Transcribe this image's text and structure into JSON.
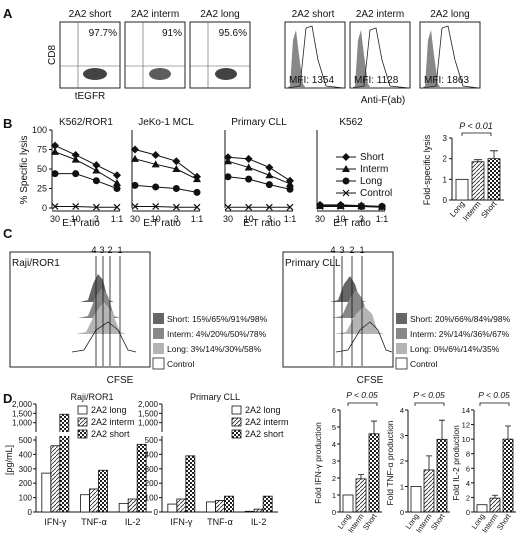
{
  "panels": {
    "A": "A",
    "B": "B",
    "C": "C",
    "D": "D"
  },
  "panelA": {
    "titles": [
      "2A2 short",
      "2A2 interm",
      "2A2 long",
      "2A2 short",
      "2A2 interm",
      "2A2 long"
    ],
    "percents": [
      "97.7%",
      "91%",
      "95.6%"
    ],
    "mfi": [
      "MFI: 1354",
      "MFI: 1128",
      "MFI: 1863"
    ],
    "ylabel": "CD8",
    "xlabel_scatter": "tEGFR",
    "xlabel_hist": "Anti-F(ab)"
  },
  "panelB": {
    "titles": [
      "K562/ROR1",
      "JeKo-1 MCL",
      "Primary CLL",
      "K562"
    ],
    "ylabel": "% Specific lysis",
    "xlabel": "E:T ratio",
    "xticks": [
      "30",
      "10",
      "3",
      "1:1"
    ],
    "yticks": [
      "0",
      "25",
      "50",
      "75",
      "100"
    ],
    "legend": [
      "Short",
      "Interm",
      "Long",
      "Control"
    ],
    "bar_ylabel": "Fold-specific lysis",
    "bar_pvalue": "P < 0.01",
    "bar_cats": [
      "Long",
      "Interm",
      "Short"
    ],
    "bar_yticks": [
      "0",
      "1",
      "2",
      "3"
    ]
  },
  "panelC": {
    "peaks": [
      "4",
      "3",
      "2",
      "1"
    ],
    "raji": {
      "title": "Raji/ROR1",
      "legend": [
        "Short: 15%/65%/91%/98%",
        "Interm: 4%/20%/50%/78%",
        "Long: 3%/14%/30%/58%",
        "Control"
      ]
    },
    "cll": {
      "title": "Primary CLL",
      "legend": [
        "Short: 20%/66%/84%/98%",
        "Interm: 2%/14%/36%/67%",
        "Long: 0%/6%/14%/35%",
        "Control"
      ]
    },
    "xlabel": "CFSE"
  },
  "panelD": {
    "ylabel": "[pg/mL]",
    "yticks": [
      "0",
      "100",
      "200",
      "300",
      "400",
      "500",
      "1,000",
      "1,500",
      "2,000"
    ],
    "raji_title": "Raji/ROR1",
    "cll_title": "Primary CLL",
    "legend": [
      "2A2 long",
      "2A2 interm",
      "2A2 short"
    ],
    "cats": [
      "IFN-γ",
      "TNF-α",
      "IL-2"
    ],
    "fold_ylabels": [
      "Fold IFN-γ production",
      "Fold TNF-α production",
      "Fold IL-2 production"
    ],
    "fold_cats": [
      "Long",
      "Interm",
      "Short"
    ],
    "pvalue": "P < 0.05",
    "fold_yticks_a": [
      "0",
      "1",
      "2",
      "3",
      "4",
      "5",
      "6"
    ],
    "fold_yticks_b": [
      "0",
      "1",
      "2",
      "3",
      "4"
    ],
    "fold_yticks_c": [
      "0",
      "2",
      "4",
      "6",
      "8",
      "10",
      "12",
      "14"
    ]
  },
  "chart_data": [
    {
      "type": "line",
      "title": "K562/ROR1",
      "xlabel": "E:T ratio",
      "ylabel": "% Specific lysis",
      "x": [
        "30",
        "10",
        "3",
        "1:1"
      ],
      "ylim": [
        0,
        100
      ],
      "series": [
        {
          "name": "Short",
          "values": [
            80,
            68,
            55,
            42
          ]
        },
        {
          "name": "Interm",
          "values": [
            72,
            62,
            48,
            32
          ]
        },
        {
          "name": "Long",
          "values": [
            44,
            44,
            35,
            25
          ]
        },
        {
          "name": "Control",
          "values": [
            2,
            2,
            1,
            1
          ]
        }
      ]
    },
    {
      "type": "line",
      "title": "JeKo-1 MCL",
      "xlabel": "E:T ratio",
      "x": [
        "30",
        "10",
        "3",
        "1:1"
      ],
      "ylim": [
        0,
        100
      ],
      "series": [
        {
          "name": "Short",
          "values": [
            75,
            68,
            60,
            40
          ]
        },
        {
          "name": "Interm",
          "values": [
            63,
            56,
            50,
            37
          ]
        },
        {
          "name": "Long",
          "values": [
            29,
            27,
            25,
            20
          ]
        },
        {
          "name": "Control",
          "values": [
            2,
            2,
            1,
            1
          ]
        }
      ]
    },
    {
      "type": "line",
      "title": "Primary CLL",
      "xlabel": "E:T ratio",
      "x": [
        "30",
        "10",
        "3",
        "1:1"
      ],
      "ylim": [
        0,
        100
      ],
      "series": [
        {
          "name": "Short",
          "values": [
            65,
            63,
            52,
            35
          ]
        },
        {
          "name": "Interm",
          "values": [
            60,
            52,
            42,
            31
          ]
        },
        {
          "name": "Long",
          "values": [
            40,
            37,
            30,
            24
          ]
        },
        {
          "name": "Control",
          "values": [
            1,
            1,
            1,
            1
          ]
        }
      ]
    },
    {
      "type": "line",
      "title": "K562",
      "xlabel": "E:T ratio",
      "x": [
        "30",
        "10",
        "3",
        "1:1"
      ],
      "ylim": [
        0,
        100
      ],
      "series": [
        {
          "name": "Short",
          "values": [
            4,
            4,
            3,
            2
          ]
        },
        {
          "name": "Interm",
          "values": [
            3,
            3,
            3,
            2
          ]
        },
        {
          "name": "Long",
          "values": [
            3,
            3,
            2,
            2
          ]
        },
        {
          "name": "Control",
          "values": [
            2,
            2,
            2,
            1
          ]
        }
      ]
    },
    {
      "type": "bar",
      "ylabel": "Fold-specific lysis",
      "categories": [
        "Long",
        "Interm",
        "Short"
      ],
      "values": [
        1.0,
        1.85,
        2.0
      ],
      "errors": [
        0,
        0.1,
        0.38
      ],
      "ylim": [
        0,
        3
      ]
    },
    {
      "type": "bar",
      "title": "Raji/ROR1",
      "ylabel": "[pg/mL]",
      "categories": [
        "IFN-γ",
        "TNF-α",
        "IL-2"
      ],
      "series": [
        {
          "name": "2A2 long",
          "values": [
            270,
            120,
            60
          ]
        },
        {
          "name": "2A2 interm",
          "values": [
            460,
            160,
            90
          ]
        },
        {
          "name": "2A2 short",
          "values": [
            1450,
            290,
            470
          ]
        }
      ]
    },
    {
      "type": "bar",
      "title": "Primary CLL",
      "ylabel": "[pg/mL]",
      "categories": [
        "IFN-γ",
        "TNF-α",
        "IL-2"
      ],
      "series": [
        {
          "name": "2A2 long",
          "values": [
            55,
            70,
            5
          ]
        },
        {
          "name": "2A2 interm",
          "values": [
            90,
            80,
            20
          ]
        },
        {
          "name": "2A2 short",
          "values": [
            390,
            110,
            110
          ]
        }
      ]
    },
    {
      "type": "bar",
      "ylabel": "Fold IFN-γ production",
      "categories": [
        "Long",
        "Interm",
        "Short"
      ],
      "values": [
        1.0,
        1.95,
        4.6
      ],
      "errors": [
        0,
        0.25,
        0.75
      ],
      "ylim": [
        0,
        6
      ]
    },
    {
      "type": "bar",
      "ylabel": "Fold TNF-α production",
      "categories": [
        "Long",
        "Interm",
        "Short"
      ],
      "values": [
        1.0,
        1.65,
        2.85
      ],
      "errors": [
        0,
        0.55,
        0.75
      ],
      "ylim": [
        0,
        4
      ]
    },
    {
      "type": "bar",
      "ylabel": "Fold IL-2 production",
      "categories": [
        "Long",
        "Interm",
        "Short"
      ],
      "values": [
        1.0,
        1.9,
        10.0
      ],
      "errors": [
        0,
        0.4,
        1.8
      ],
      "ylim": [
        0,
        14
      ]
    }
  ]
}
